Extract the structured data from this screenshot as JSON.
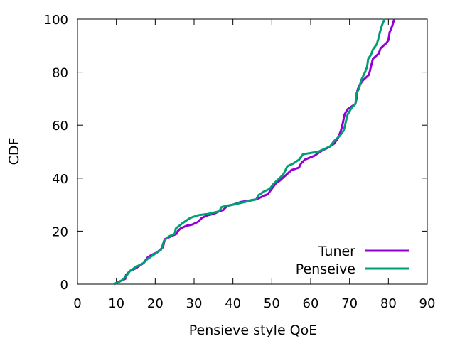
{
  "chart_data": {
    "type": "line",
    "title": "",
    "xlabel": "Pensieve style QoE",
    "ylabel": "CDF",
    "xlim": [
      0,
      90
    ],
    "ylim": [
      0,
      100
    ],
    "xticks": [
      "0",
      "10",
      "20",
      "30",
      "40",
      "50",
      "60",
      "70",
      "80",
      "90"
    ],
    "yticks": [
      "0",
      "20",
      "40",
      "60",
      "80",
      "100"
    ],
    "grid": false,
    "legend_position": "bottom-right",
    "series": [
      {
        "name": "Tuner",
        "color": "#9400d3",
        "points": [
          [
            9.5,
            0
          ],
          [
            11.5,
            1.5
          ],
          [
            12.3,
            2
          ],
          [
            12.5,
            3.5
          ],
          [
            13.5,
            5
          ],
          [
            15,
            6
          ],
          [
            17,
            8
          ],
          [
            18,
            10
          ],
          [
            19,
            11
          ],
          [
            20.5,
            12
          ],
          [
            22,
            14
          ],
          [
            22.3,
            16
          ],
          [
            22.5,
            17
          ],
          [
            24,
            18
          ],
          [
            25.5,
            19
          ],
          [
            25.8,
            20
          ],
          [
            26.5,
            21
          ],
          [
            28,
            22
          ],
          [
            29.5,
            22.5
          ],
          [
            31,
            23.5
          ],
          [
            32,
            25
          ],
          [
            33.5,
            26
          ],
          [
            35,
            26.5
          ],
          [
            36.5,
            27.5
          ],
          [
            37.5,
            28
          ],
          [
            38.5,
            29.5
          ],
          [
            40,
            30
          ],
          [
            42,
            31
          ],
          [
            44,
            31.5
          ],
          [
            46,
            32
          ],
          [
            47.5,
            33
          ],
          [
            49,
            34
          ],
          [
            50,
            36
          ],
          [
            51,
            38
          ],
          [
            52,
            39
          ],
          [
            53.5,
            41
          ],
          [
            55,
            43
          ],
          [
            57,
            44
          ],
          [
            57.5,
            45.5
          ],
          [
            58.5,
            47
          ],
          [
            61,
            48.5
          ],
          [
            63,
            50.5
          ],
          [
            64.5,
            51.5
          ],
          [
            66,
            53
          ],
          [
            67,
            55
          ],
          [
            67.8,
            58
          ],
          [
            68.3,
            61
          ],
          [
            68.7,
            64
          ],
          [
            69.5,
            66
          ],
          [
            71.5,
            68
          ],
          [
            71.8,
            70
          ],
          [
            72,
            73
          ],
          [
            72.5,
            75
          ],
          [
            73.5,
            77
          ],
          [
            75,
            79
          ],
          [
            75.5,
            82
          ],
          [
            76,
            85
          ],
          [
            77.5,
            87
          ],
          [
            78,
            89
          ],
          [
            79.5,
            91
          ],
          [
            80,
            92
          ],
          [
            80.3,
            95
          ],
          [
            81,
            97.5
          ],
          [
            81.5,
            100
          ]
        ]
      },
      {
        "name": "Penseive",
        "color": "#009e73",
        "points": [
          [
            9.3,
            0
          ],
          [
            11.5,
            1.5
          ],
          [
            12.5,
            3
          ],
          [
            13.5,
            5
          ],
          [
            15,
            6.5
          ],
          [
            17,
            8
          ],
          [
            18,
            9.5
          ],
          [
            19.5,
            11
          ],
          [
            21.5,
            13
          ],
          [
            22.3,
            16.5
          ],
          [
            23.5,
            18
          ],
          [
            25,
            19
          ],
          [
            25.3,
            21
          ],
          [
            27,
            23
          ],
          [
            29,
            25
          ],
          [
            31,
            26
          ],
          [
            33.5,
            26.5
          ],
          [
            36.5,
            27.5
          ],
          [
            37,
            29
          ],
          [
            38,
            29.5
          ],
          [
            40,
            30
          ],
          [
            43,
            31
          ],
          [
            46,
            32
          ],
          [
            46.5,
            33.5
          ],
          [
            48,
            35
          ],
          [
            49.5,
            36
          ],
          [
            50.5,
            38
          ],
          [
            52,
            40
          ],
          [
            53,
            41.5
          ],
          [
            53.5,
            43
          ],
          [
            54,
            44.5
          ],
          [
            55.5,
            45.5
          ],
          [
            57,
            47
          ],
          [
            58,
            49
          ],
          [
            60,
            49.5
          ],
          [
            62,
            50
          ],
          [
            63.5,
            51
          ],
          [
            65,
            52
          ],
          [
            66,
            54
          ],
          [
            67.5,
            56
          ],
          [
            68.5,
            58
          ],
          [
            69,
            61
          ],
          [
            69.5,
            64
          ],
          [
            70.5,
            66.5
          ],
          [
            71.5,
            68
          ],
          [
            71.8,
            72
          ],
          [
            72.5,
            74
          ],
          [
            73,
            77
          ],
          [
            74,
            80
          ],
          [
            74.5,
            82
          ],
          [
            74.8,
            85
          ],
          [
            75.5,
            86.5
          ],
          [
            76,
            88.5
          ],
          [
            77,
            90.5
          ],
          [
            77.5,
            93
          ],
          [
            77.8,
            95
          ],
          [
            78.3,
            97.5
          ],
          [
            79,
            100
          ]
        ]
      }
    ]
  }
}
